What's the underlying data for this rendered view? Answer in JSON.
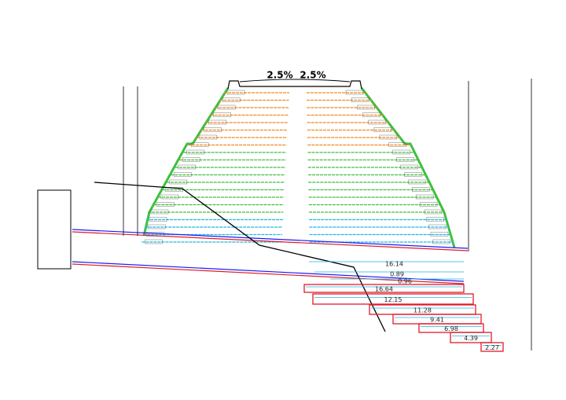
{
  "grade": {
    "left": "2.5%",
    "right": "2.5%"
  },
  "dimensions": {
    "top": [
      "16.14",
      "0.89",
      "0.96"
    ],
    "layers": [
      "16.64",
      "12.15",
      "11.28",
      "9.41",
      "6.98",
      "4.39",
      "2.27"
    ]
  }
}
